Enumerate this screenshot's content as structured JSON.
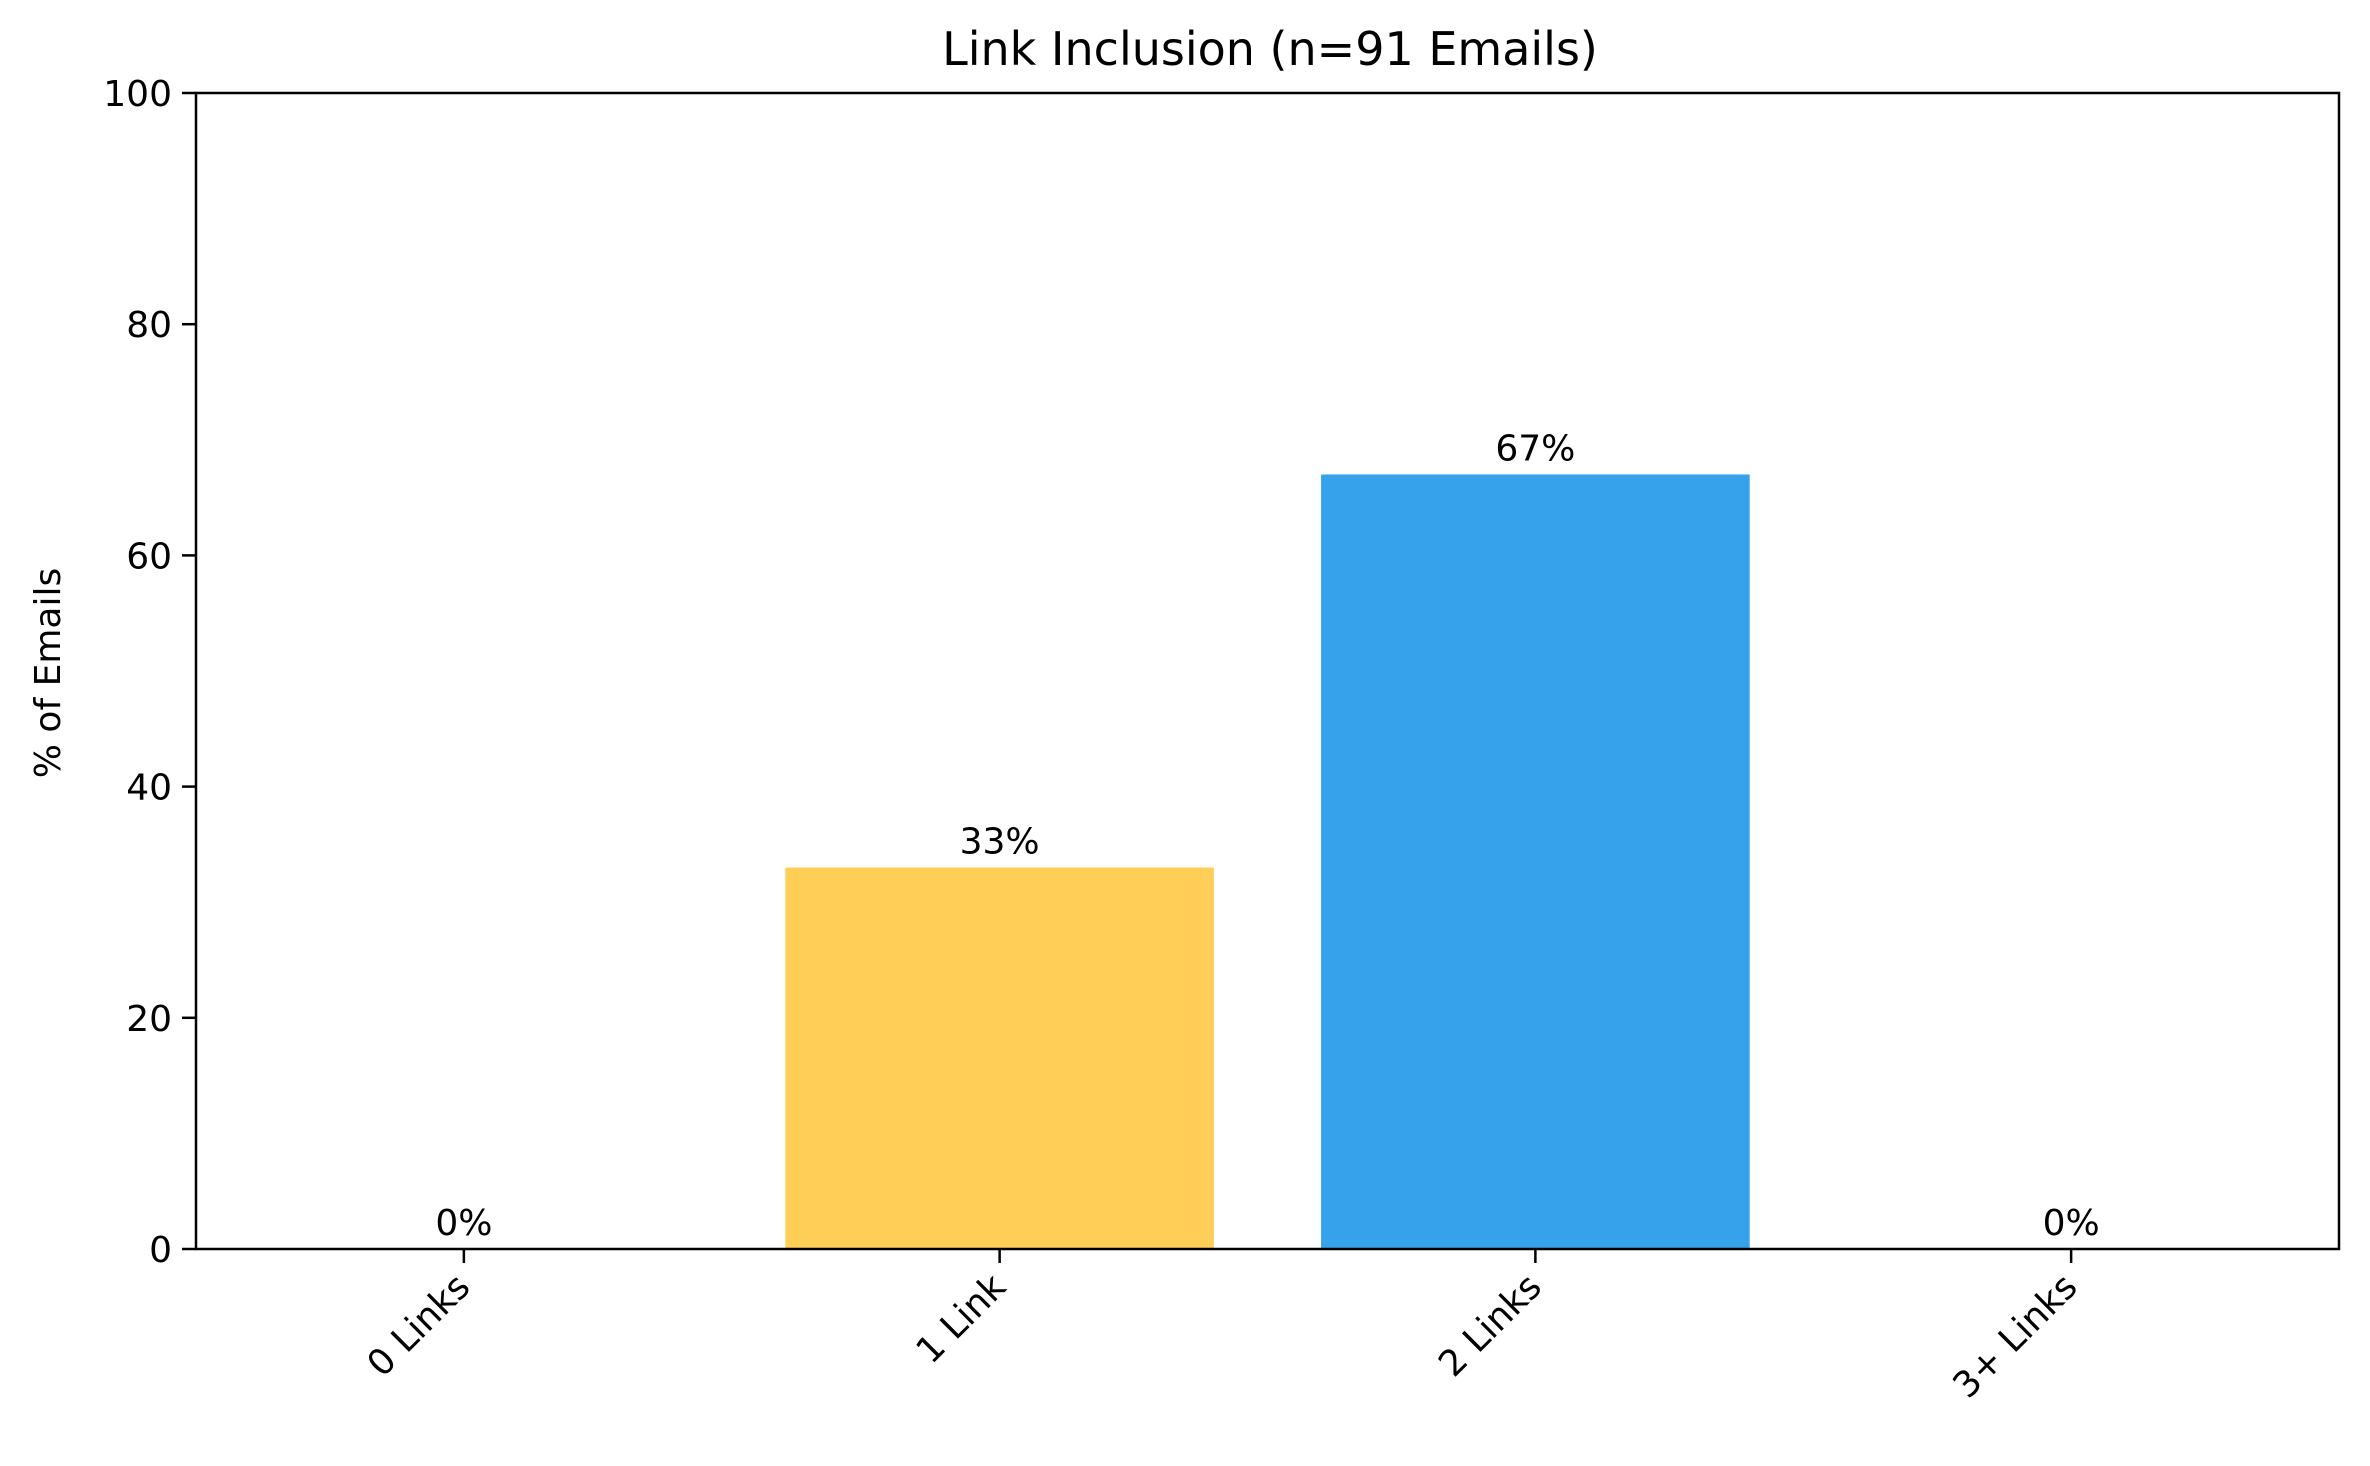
{
  "chart_data": {
    "type": "bar",
    "title": "Link Inclusion (n=91 Emails)",
    "xlabel": "",
    "ylabel": "% of Emails",
    "categories": [
      "0 Links",
      "1 Link",
      "2 Links",
      "3+ Links"
    ],
    "values": [
      0,
      33,
      67,
      0
    ],
    "data_labels": [
      "0%",
      "33%",
      "67%",
      "0%"
    ],
    "colors": [
      "#FFCE56",
      "#FFCE56",
      "#36A2EB",
      "#36A2EB"
    ],
    "ylim": [
      0,
      100
    ],
    "yticks": [
      "0",
      "20",
      "40",
      "60",
      "80",
      "100"
    ],
    "grid": false,
    "legend": "none"
  }
}
